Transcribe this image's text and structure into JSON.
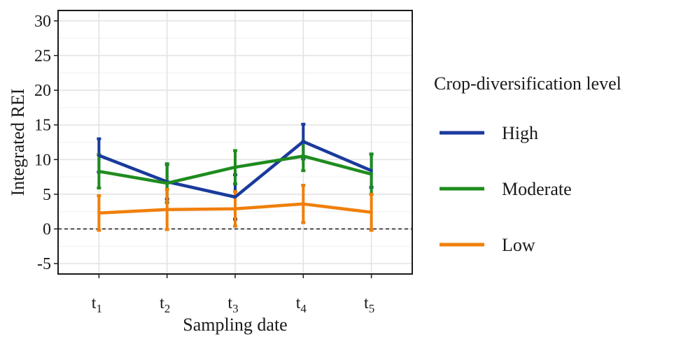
{
  "chart_data": {
    "type": "line",
    "xlabel": "Sampling date",
    "ylabel": "Integrated REI",
    "categories": [
      {
        "base": "t",
        "sub": "1"
      },
      {
        "base": "t",
        "sub": "2"
      },
      {
        "base": "t",
        "sub": "3"
      },
      {
        "base": "t",
        "sub": "4"
      },
      {
        "base": "t",
        "sub": "5"
      }
    ],
    "ylim": [
      -6.5,
      31.5
    ],
    "yticks": [
      -5,
      0,
      5,
      10,
      15,
      20,
      25,
      30
    ],
    "grid": true,
    "reference_line": {
      "y": 0,
      "style": "dashed"
    },
    "legend": {
      "title": "Crop-diversification level",
      "position": "right"
    },
    "series": [
      {
        "name": "High",
        "color": "#1a3a9c",
        "values": [
          10.6,
          6.8,
          4.6,
          12.6,
          8.4
        ],
        "errors": [
          2.4,
          2.5,
          3.2,
          2.5,
          2.4
        ]
      },
      {
        "name": "Moderate",
        "color": "#1e8c1e",
        "values": [
          8.3,
          6.6,
          8.9,
          10.5,
          7.9
        ],
        "errors": [
          2.4,
          2.8,
          2.4,
          2.1,
          2.9
        ]
      },
      {
        "name": "Low",
        "color": "#f07f0a",
        "values": [
          2.3,
          2.8,
          2.9,
          3.6,
          2.4
        ],
        "errors": [
          2.5,
          2.9,
          2.5,
          2.7,
          2.6
        ]
      }
    ]
  }
}
